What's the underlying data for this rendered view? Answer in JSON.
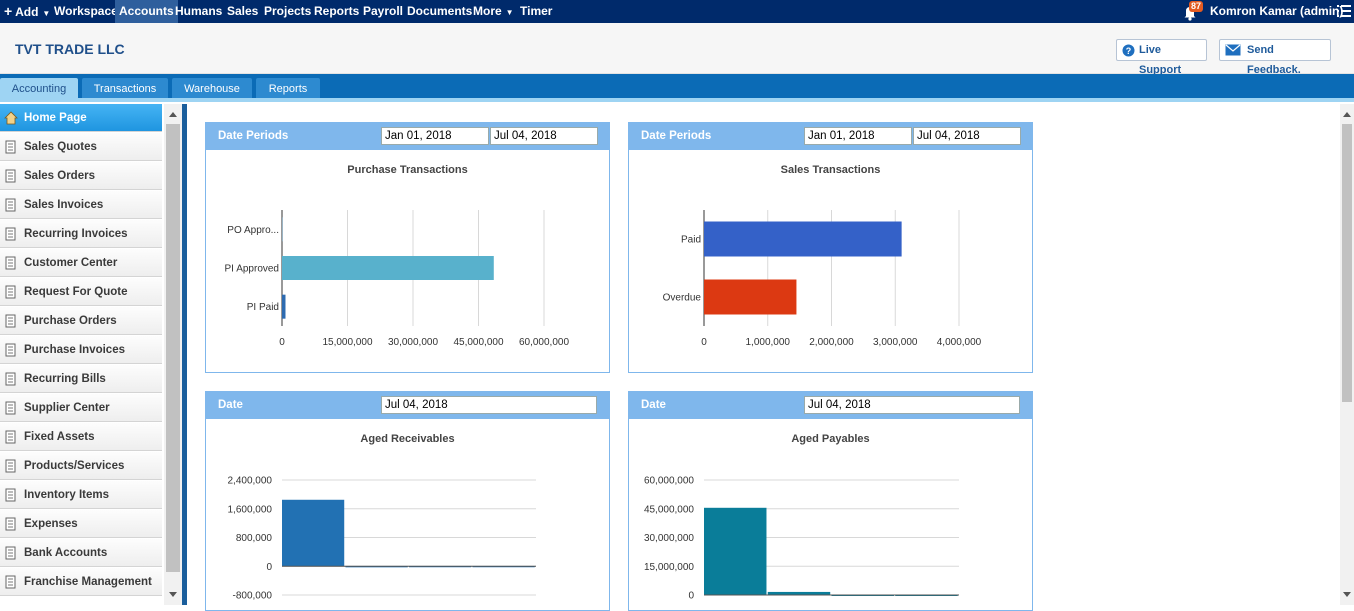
{
  "topbar": {
    "add": "Add",
    "workspace": "Workspace",
    "accounts": "Accounts",
    "humans": "Humans",
    "sales": "Sales",
    "projects": "Projects",
    "reports": "Reports",
    "payroll": "Payroll",
    "documents": "Documents",
    "more": "More",
    "timer": "Timer",
    "notification_count": "87",
    "user": "Komron Kamar (admin)"
  },
  "header": {
    "company": "TVT TRADE LLC",
    "live_support": "Live Support",
    "send_feedback": "Send Feedback."
  },
  "tabs": [
    "Accounting",
    "Transactions",
    "Warehouse",
    "Reports"
  ],
  "sidebar": {
    "items": [
      "Home Page",
      "Sales Quotes",
      "Sales Orders",
      "Sales Invoices",
      "Recurring Invoices",
      "Customer Center",
      "Request For Quote",
      "Purchase Orders",
      "Purchase Invoices",
      "Recurring Bills",
      "Supplier Center",
      "Fixed Assets",
      "Products/Services",
      "Inventory Items",
      "Expenses",
      "Bank Accounts",
      "Franchise Management"
    ]
  },
  "panels": {
    "purchase": {
      "label": "Date Periods",
      "from": "Jan 01, 2018",
      "to": "Jul 04, 2018",
      "title": "Purchase Transactions"
    },
    "sales": {
      "label": "Date Periods",
      "from": "Jan 01, 2018",
      "to": "Jul 04, 2018",
      "title": "Sales Transactions"
    },
    "receivables": {
      "label": "Date",
      "date": "Jul 04, 2018",
      "title": "Aged Receivables"
    },
    "payables": {
      "label": "Date",
      "date": "Jul 04, 2018",
      "title": "Aged Payables"
    }
  },
  "colors": {
    "topbar": "#002a6b",
    "tabbar": "#0b6bb6",
    "panel_header": "#7fb7ec"
  },
  "chart_data": [
    {
      "type": "bar",
      "orientation": "horizontal",
      "title": "Purchase Transactions",
      "categories": [
        "PO Appro...",
        "PI Approved",
        "PI Paid"
      ],
      "values": [
        200000,
        48500000,
        800000
      ],
      "colors": [
        "#9ab4c4",
        "#58b1cc",
        "#2e6bb0"
      ],
      "xticks": [
        "0",
        "15,000,000",
        "30,000,000",
        "45,000,000",
        "60,000,000"
      ],
      "xlim": [
        0,
        60000000
      ],
      "grid": true
    },
    {
      "type": "bar",
      "orientation": "horizontal",
      "title": "Sales Transactions",
      "categories": [
        "Paid",
        "Overdue"
      ],
      "values": [
        3100000,
        1450000
      ],
      "colors": [
        "#3461c8",
        "#dc3912"
      ],
      "xticks": [
        "0",
        "1,000,000",
        "2,000,000",
        "3,000,000",
        "4,000,000"
      ],
      "xlim": [
        0,
        4000000
      ],
      "grid": true
    },
    {
      "type": "bar",
      "title": "Aged Receivables",
      "values": [
        1850000,
        -30000,
        0,
        0
      ],
      "colors": [
        "#2271b3",
        "#2271b3",
        "#2271b3",
        "#2271b3"
      ],
      "yticks": [
        "2,400,000",
        "1,600,000",
        "800,000",
        "0",
        "-800,000"
      ],
      "ylim": [
        -800000,
        2400000
      ],
      "grid": true
    },
    {
      "type": "bar",
      "title": "Aged Payables",
      "values": [
        45500000,
        1600000,
        0,
        0
      ],
      "colors": [
        "#0a7d99",
        "#0a7d99",
        "#0a7d99",
        "#0a7d99"
      ],
      "yticks": [
        "60,000,000",
        "45,000,000",
        "30,000,000",
        "15,000,000",
        "0"
      ],
      "ylim": [
        0,
        60000000
      ],
      "grid": true
    }
  ]
}
